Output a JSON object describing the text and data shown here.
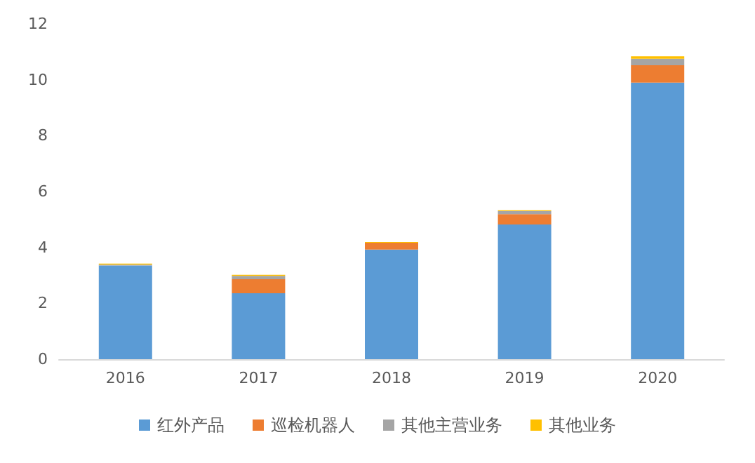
{
  "chart_data": {
    "type": "bar",
    "stacked": true,
    "categories": [
      "2016",
      "2017",
      "2018",
      "2019",
      "2020"
    ],
    "series": [
      {
        "name": "红外产品",
        "color": "#5b9bd5",
        "values": [
          3.35,
          2.36,
          3.92,
          4.82,
          9.9
        ]
      },
      {
        "name": "巡检机器人",
        "color": "#ed7d31",
        "values": [
          0,
          0.5,
          0.25,
          0.37,
          0.62
        ]
      },
      {
        "name": "其他主营业务",
        "color": "#a5a5a5",
        "values": [
          0.03,
          0.12,
          null,
          0.11,
          0.23
        ]
      },
      {
        "name": "其他业务",
        "color": "#ffc000",
        "values": [
          0.04,
          0.04,
          0.02,
          0.03,
          0.09
        ]
      }
    ],
    "ylim": [
      0,
      12
    ],
    "yticks": [
      0,
      2,
      4,
      6,
      8,
      10,
      12
    ],
    "grid": false,
    "legend": "bottom"
  }
}
